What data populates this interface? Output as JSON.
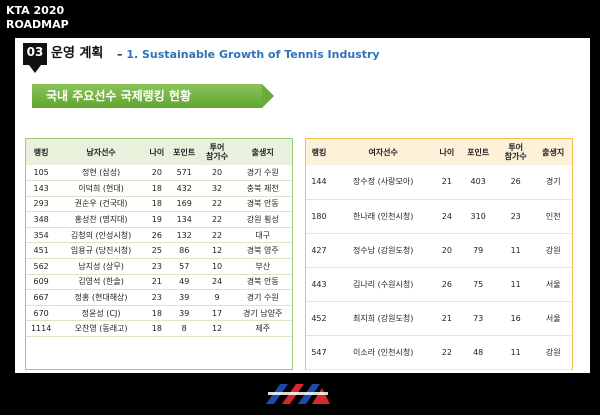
{
  "header": {
    "title": "KTA 2020",
    "subtitle": "ROADMAP"
  },
  "section": {
    "number": "03",
    "title": "운영 계획",
    "dash": "–",
    "subtitle": "1. Sustainable Growth of Tennis Industry"
  },
  "banner": {
    "label": "국내 주요선수 국제랭킹 현황"
  },
  "male_table": {
    "headers": [
      "랭킹",
      "남자선수",
      "나이",
      "포인트",
      "투어\n참가수",
      "출생지"
    ],
    "rows": [
      [
        "105",
        "정현 (삼성)",
        "20",
        "571",
        "20",
        "경기 수원"
      ],
      [
        "143",
        "이덕희 (현대)",
        "18",
        "432",
        "32",
        "충북 제천"
      ],
      [
        "293",
        "권순우 (건국대)",
        "18",
        "169",
        "22",
        "경북 안동"
      ],
      [
        "348",
        "홍성찬 (명지대)",
        "19",
        "134",
        "22",
        "강원 횡성"
      ],
      [
        "354",
        "김청의 (안성시청)",
        "26",
        "132",
        "22",
        "대구"
      ],
      [
        "451",
        "임용규 (당진시청)",
        "25",
        "86",
        "12",
        "경북 영주"
      ],
      [
        "562",
        "남지성 (상무)",
        "23",
        "57",
        "10",
        "부산"
      ],
      [
        "609",
        "김영석 (한솔)",
        "21",
        "49",
        "24",
        "경북 안동"
      ],
      [
        "667",
        "정홍 (현대해상)",
        "23",
        "39",
        "9",
        "경기 수원"
      ],
      [
        "670",
        "정윤성 (CJ)",
        "18",
        "39",
        "17",
        "경기 남양주"
      ],
      [
        "1114",
        "오찬영 (동래고)",
        "18",
        "8",
        "12",
        "제주"
      ]
    ]
  },
  "female_table": {
    "headers": [
      "랭킹",
      "여자선수",
      "나이",
      "포인트",
      "투어\n참가수",
      "출생지"
    ],
    "rows": [
      [
        "144",
        "장수정 (사랑모아)",
        "21",
        "403",
        "26",
        "경기"
      ],
      [
        "180",
        "한나래 (인천시청)",
        "24",
        "310",
        "23",
        "인천"
      ],
      [
        "427",
        "정수남 (강원도청)",
        "20",
        "79",
        "11",
        "강원"
      ],
      [
        "443",
        "김나리 (수원시청)",
        "26",
        "75",
        "11",
        "서울"
      ],
      [
        "452",
        "최지희 (강원도청)",
        "21",
        "73",
        "16",
        "서울"
      ],
      [
        "547",
        "이소라 (인천시청)",
        "22",
        "48",
        "11",
        "강원"
      ]
    ]
  },
  "logo": {
    "text": "KTA"
  },
  "colors": {
    "banner": "#6aac38",
    "male_border": "#9ccc7a",
    "female_border": "#f2c14e",
    "subtitle": "#2f73b5"
  }
}
